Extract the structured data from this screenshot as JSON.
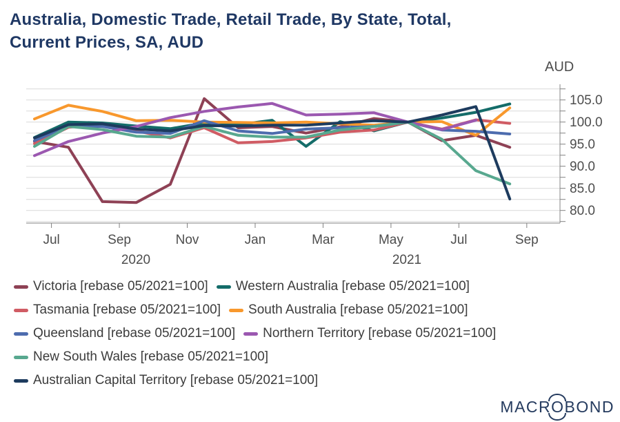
{
  "title_lines": {
    "0": "Australia, Domestic Trade, Retail Trade, By State, Total,",
    "1": "Current Prices, SA, AUD"
  },
  "unit_label": "AUD",
  "logo": {
    "part1": "MACR",
    "o": "O",
    "part2": "BOND",
    "text": "MACROBOND"
  },
  "colors": {
    "title": "#1f3864",
    "axis_text": "#4d4d4d",
    "grid": "#d9d9d9",
    "axis_line": "#9a9a9a",
    "tick": "#808080",
    "legend_text": "#3c3c3c",
    "logo": "#243a5e"
  },
  "chart_data": {
    "type": "line",
    "title": "Australia, Domestic Trade, Retail Trade, By State, Total, Current Prices, SA, AUD",
    "unit": "AUD",
    "grid": true,
    "legend_position": "bottom",
    "y_axis_side": "right",
    "ylim": [
      77.5,
      107.5
    ],
    "y_gridline_step": 2.5,
    "y_tick_labels": [
      {
        "value": 105.0,
        "label": "105.0"
      },
      {
        "value": 100.0,
        "label": "100.0"
      },
      {
        "value": 95.0,
        "label": "95.0"
      },
      {
        "value": 90.0,
        "label": "90.0"
      },
      {
        "value": 85.0,
        "label": "85.0"
      },
      {
        "value": 80.0,
        "label": "80.0"
      }
    ],
    "x": [
      "2020-06",
      "2020-07",
      "2020-08",
      "2020-09",
      "2020-10",
      "2020-11",
      "2020-12",
      "2021-01",
      "2021-02",
      "2021-03",
      "2021-04",
      "2021-05",
      "2021-06",
      "2021-07",
      "2021-08"
    ],
    "x_tick_labels": [
      "Jul",
      "Sep",
      "Nov",
      "Jan",
      "Mar",
      "May",
      "Jul",
      "Sep"
    ],
    "year_labels": [
      "2020",
      "2021"
    ],
    "series": [
      {
        "name": "Victoria",
        "legend_label": "Victoria [rebase 05/2021=100]",
        "color": "#8e4155",
        "values": [
          95.6,
          94.3,
          82.0,
          81.8,
          85.9,
          105.3,
          98.7,
          99.0,
          97.5,
          98.9,
          100.8,
          100.0,
          95.8,
          97.0,
          94.3
        ]
      },
      {
        "name": "Western Australia",
        "legend_label": "Western Australia [rebase 05/2021=100]",
        "color": "#146c69",
        "values": [
          96.5,
          100.0,
          99.8,
          99.1,
          98.5,
          99.8,
          99.4,
          100.4,
          94.5,
          100.1,
          98.0,
          100.0,
          100.9,
          102.2,
          104.1
        ]
      },
      {
        "name": "Tasmania",
        "legend_label": "Tasmania [rebase 05/2021=100]",
        "color": "#d05c64",
        "values": [
          95.1,
          98.8,
          99.6,
          98.0,
          96.4,
          98.7,
          95.3,
          95.6,
          96.4,
          97.7,
          98.2,
          100.0,
          98.4,
          100.5,
          99.7
        ]
      },
      {
        "name": "South Australia",
        "legend_label": "South Australia [rebase 05/2021=100]",
        "color": "#f8982d",
        "values": [
          100.7,
          103.8,
          102.4,
          100.3,
          100.4,
          100.0,
          99.9,
          99.8,
          100.0,
          99.6,
          99.3,
          100.0,
          100.1,
          97.0,
          103.2
        ]
      },
      {
        "name": "Queensland",
        "legend_label": "Queensland [rebase 05/2021=100]",
        "color": "#4d6cae",
        "values": [
          95.8,
          99.1,
          99.0,
          97.7,
          97.4,
          100.3,
          98.0,
          97.4,
          98.4,
          98.7,
          99.0,
          100.0,
          98.2,
          97.9,
          97.3
        ]
      },
      {
        "name": "Northern Territory",
        "legend_label": "Northern Territory [rebase 05/2021=100]",
        "color": "#9b58b0",
        "values": [
          92.4,
          95.6,
          97.5,
          99.0,
          101.0,
          102.4,
          103.4,
          104.2,
          101.6,
          101.8,
          102.1,
          100.0,
          98.3,
          100.4,
          null
        ]
      },
      {
        "name": "New South Wales",
        "legend_label": "New South Wales [rebase 05/2021=100]",
        "color": "#58a88f",
        "values": [
          94.5,
          99.0,
          98.3,
          96.8,
          96.6,
          99.0,
          97.0,
          96.6,
          96.6,
          98.2,
          99.0,
          100.0,
          96.1,
          89.0,
          86.0
        ]
      },
      {
        "name": "Australian Capital Territory",
        "legend_label": "Australian Capital Territory [rebase 05/2021=100]",
        "color": "#1d3b5e",
        "values": [
          96.4,
          99.4,
          99.6,
          98.4,
          98.0,
          99.2,
          99.1,
          99.3,
          99.3,
          99.8,
          100.3,
          100.0,
          101.6,
          103.5,
          82.6
        ]
      }
    ]
  },
  "legend": {
    "rows": [
      [
        0,
        1
      ],
      [
        2,
        3
      ],
      [
        4,
        5
      ],
      [
        6
      ],
      [
        7
      ]
    ]
  }
}
